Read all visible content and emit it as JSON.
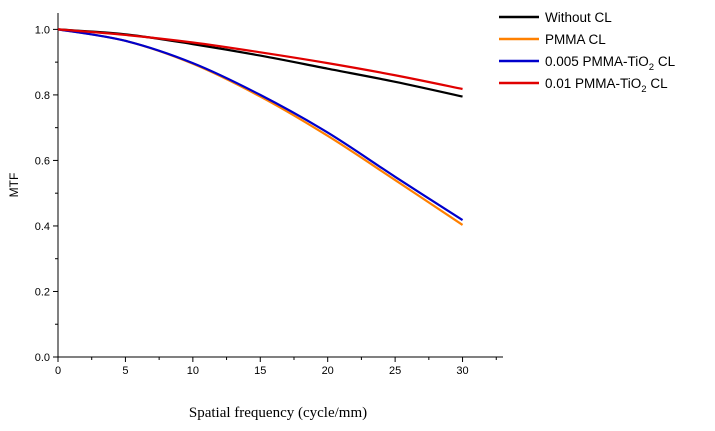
{
  "chart_data": {
    "type": "line",
    "title": "",
    "xlabel": "Spatial frequency (cycle/mm)",
    "ylabel": "MTF",
    "xlim": [
      0,
      33
    ],
    "ylim": [
      0,
      1.05
    ],
    "xticks": [
      0,
      5,
      10,
      15,
      20,
      25,
      30
    ],
    "yticks": [
      0.0,
      0.2,
      0.4,
      0.6,
      0.8,
      1.0
    ],
    "x": [
      0,
      5,
      10,
      15,
      20,
      25,
      30
    ],
    "legend_position": "top-right",
    "series": [
      {
        "name": "Without CL",
        "color": "#000000",
        "values": [
          1.0,
          0.985,
          0.955,
          0.92,
          0.88,
          0.84,
          0.795
        ]
      },
      {
        "name": "PMMA CL",
        "color": "#ff8000",
        "values": [
          1.0,
          0.965,
          0.895,
          0.795,
          0.675,
          0.54,
          0.403
        ]
      },
      {
        "name": "0.005 PMMA-TiO2 CL",
        "legend_main": "0.005 PMMA-TiO",
        "legend_sub": "2",
        "legend_tail": " CL",
        "color": "#0000cc",
        "values": [
          1.0,
          0.965,
          0.897,
          0.8,
          0.685,
          0.55,
          0.418
        ]
      },
      {
        "name": "0.01 PMMA-TiO2 CL",
        "legend_main": "0.01 PMMA-TiO",
        "legend_sub": "2",
        "legend_tail": " CL",
        "color": "#e00000",
        "values": [
          1.0,
          0.983,
          0.96,
          0.93,
          0.897,
          0.86,
          0.818
        ]
      }
    ]
  }
}
